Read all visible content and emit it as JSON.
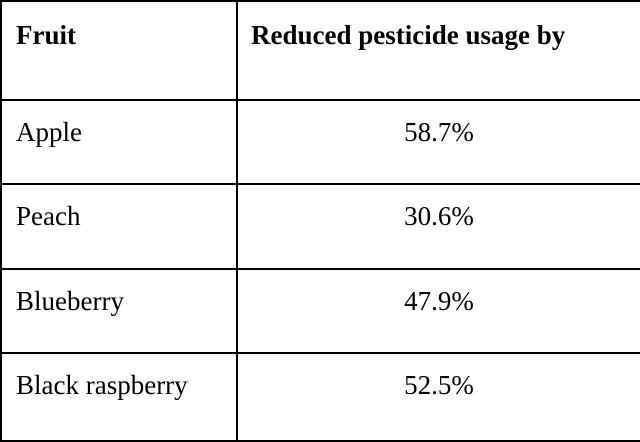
{
  "table": {
    "headers": [
      "Fruit",
      "Reduced pesticide usage by"
    ],
    "rows": [
      [
        "Apple",
        "58.7%"
      ],
      [
        "Peach",
        "30.6%"
      ],
      [
        "Blueberry",
        "47.9%"
      ],
      [
        "Black raspberry",
        "52.5%"
      ]
    ]
  }
}
